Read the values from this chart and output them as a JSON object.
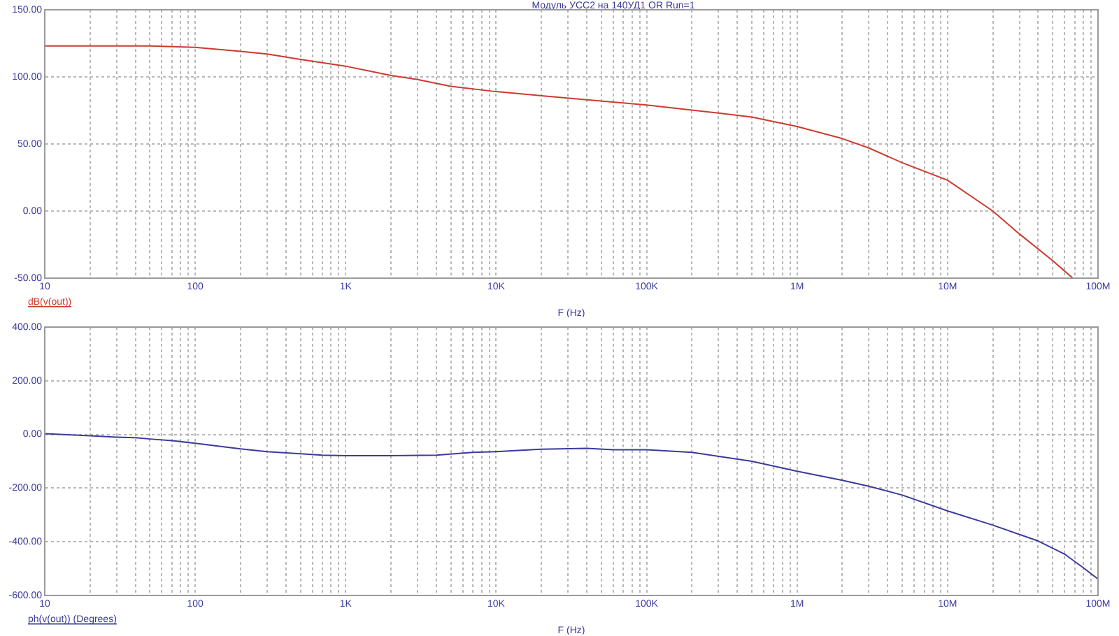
{
  "chart_data": [
    {
      "type": "line",
      "title": "Модуль УСС2 на 140УД1 OR Run=1",
      "xlabel": "F (Hz)",
      "ylabel": "dB(v(out))",
      "log": "x",
      "grid": true,
      "x": [
        10,
        50,
        100,
        200,
        300,
        500,
        1000,
        2000,
        3000,
        5000,
        10000,
        20000,
        40000,
        100000,
        300000,
        500000,
        1000000,
        2000000,
        3000000,
        5000000,
        10000000,
        20000000,
        30000000,
        50000000,
        68000000
      ],
      "series": [
        {
          "color": "#cc3b30",
          "values": [
            123,
            123,
            122,
            119,
            117,
            113,
            108,
            101,
            98,
            93,
            89,
            86,
            83,
            79,
            73,
            70,
            63,
            54,
            47,
            36,
            23,
            0,
            -17,
            -37,
            -50
          ]
        }
      ],
      "xlim": [
        10,
        100000000
      ],
      "ylim": [
        -50,
        150
      ],
      "yticks": [
        {
          "value": -50,
          "label": "-50.00"
        },
        {
          "value": 0,
          "label": "0.00"
        },
        {
          "value": 50,
          "label": "50.00"
        },
        {
          "value": 100,
          "label": "100.00"
        },
        {
          "value": 150,
          "label": "150.00"
        }
      ],
      "xticks": [
        {
          "value": 10,
          "label": "10"
        },
        {
          "value": 20,
          "label": null
        },
        {
          "value": 30,
          "label": null
        },
        {
          "value": 40,
          "label": null
        },
        {
          "value": 50,
          "label": null
        },
        {
          "value": 60,
          "label": null
        },
        {
          "value": 70,
          "label": null
        },
        {
          "value": 80,
          "label": null
        },
        {
          "value": 90,
          "label": null
        },
        {
          "value": 100,
          "label": "100"
        },
        {
          "value": 200,
          "label": null
        },
        {
          "value": 300,
          "label": null
        },
        {
          "value": 400,
          "label": null
        },
        {
          "value": 500,
          "label": null
        },
        {
          "value": 600,
          "label": null
        },
        {
          "value": 700,
          "label": null
        },
        {
          "value": 800,
          "label": null
        },
        {
          "value": 900,
          "label": null
        },
        {
          "value": 1000,
          "label": "1K"
        },
        {
          "value": 2000,
          "label": null
        },
        {
          "value": 3000,
          "label": null
        },
        {
          "value": 4000,
          "label": null
        },
        {
          "value": 5000,
          "label": null
        },
        {
          "value": 6000,
          "label": null
        },
        {
          "value": 7000,
          "label": null
        },
        {
          "value": 8000,
          "label": null
        },
        {
          "value": 9000,
          "label": null
        },
        {
          "value": 10000,
          "label": "10K"
        },
        {
          "value": 20000,
          "label": null
        },
        {
          "value": 30000,
          "label": null
        },
        {
          "value": 40000,
          "label": null
        },
        {
          "value": 50000,
          "label": null
        },
        {
          "value": 60000,
          "label": null
        },
        {
          "value": 70000,
          "label": null
        },
        {
          "value": 80000,
          "label": null
        },
        {
          "value": 90000,
          "label": null
        },
        {
          "value": 100000,
          "label": "100K"
        },
        {
          "value": 200000,
          "label": null
        },
        {
          "value": 300000,
          "label": null
        },
        {
          "value": 400000,
          "label": null
        },
        {
          "value": 500000,
          "label": null
        },
        {
          "value": 600000,
          "label": null
        },
        {
          "value": 700000,
          "label": null
        },
        {
          "value": 800000,
          "label": null
        },
        {
          "value": 900000,
          "label": null
        },
        {
          "value": 1000000,
          "label": "1M"
        },
        {
          "value": 2000000,
          "label": null
        },
        {
          "value": 3000000,
          "label": null
        },
        {
          "value": 4000000,
          "label": null
        },
        {
          "value": 5000000,
          "label": null
        },
        {
          "value": 6000000,
          "label": null
        },
        {
          "value": 7000000,
          "label": null
        },
        {
          "value": 8000000,
          "label": null
        },
        {
          "value": 9000000,
          "label": null
        },
        {
          "value": 10000000,
          "label": "10M"
        },
        {
          "value": 20000000,
          "label": null
        },
        {
          "value": 30000000,
          "label": null
        },
        {
          "value": 40000000,
          "label": null
        },
        {
          "value": 50000000,
          "label": null
        },
        {
          "value": 60000000,
          "label": null
        },
        {
          "value": 70000000,
          "label": null
        },
        {
          "value": 80000000,
          "label": null
        },
        {
          "value": 90000000,
          "label": null
        },
        {
          "value": 100000000,
          "label": "100M"
        }
      ]
    },
    {
      "type": "line",
      "xlabel": "F (Hz)",
      "ylabel": "ph(v(out)) (Degrees)",
      "log": "x",
      "grid": true,
      "x": [
        10,
        20,
        30,
        40,
        50,
        70,
        100,
        200,
        300,
        500,
        700,
        1000,
        2000,
        4000,
        7000,
        10000,
        20000,
        40000,
        60000,
        100000,
        200000,
        500000,
        1000000,
        2000000,
        3000000,
        5000000,
        10000000,
        20000000,
        40000000,
        60000000,
        80000000,
        100000000
      ],
      "series": [
        {
          "color": "#3a3a9e",
          "values": [
            3,
            -5,
            -10,
            -12,
            -17,
            -23,
            -33,
            -54,
            -64,
            -72,
            -77,
            -79,
            -79,
            -77,
            -67,
            -64,
            -55,
            -52,
            -57,
            -57,
            -67,
            -100,
            -137,
            -171,
            -193,
            -226,
            -285,
            -338,
            -397,
            -446,
            -497,
            -539
          ]
        }
      ],
      "xlim": [
        10,
        100000000
      ],
      "ylim": [
        -600,
        400
      ],
      "yticks": [
        {
          "value": -600,
          "label": "-600.00"
        },
        {
          "value": -400,
          "label": "-400.00"
        },
        {
          "value": -200,
          "label": "-200.00"
        },
        {
          "value": 0,
          "label": "0.00"
        },
        {
          "value": 200,
          "label": "200.00"
        },
        {
          "value": 400,
          "label": "400.00"
        }
      ],
      "xticks": [
        {
          "value": 10,
          "label": "10"
        },
        {
          "value": 20,
          "label": null
        },
        {
          "value": 30,
          "label": null
        },
        {
          "value": 40,
          "label": null
        },
        {
          "value": 50,
          "label": null
        },
        {
          "value": 60,
          "label": null
        },
        {
          "value": 70,
          "label": null
        },
        {
          "value": 80,
          "label": null
        },
        {
          "value": 90,
          "label": null
        },
        {
          "value": 100,
          "label": "100"
        },
        {
          "value": 200,
          "label": null
        },
        {
          "value": 300,
          "label": null
        },
        {
          "value": 400,
          "label": null
        },
        {
          "value": 500,
          "label": null
        },
        {
          "value": 600,
          "label": null
        },
        {
          "value": 700,
          "label": null
        },
        {
          "value": 800,
          "label": null
        },
        {
          "value": 900,
          "label": null
        },
        {
          "value": 1000,
          "label": "1K"
        },
        {
          "value": 2000,
          "label": null
        },
        {
          "value": 3000,
          "label": null
        },
        {
          "value": 4000,
          "label": null
        },
        {
          "value": 5000,
          "label": null
        },
        {
          "value": 6000,
          "label": null
        },
        {
          "value": 7000,
          "label": null
        },
        {
          "value": 8000,
          "label": null
        },
        {
          "value": 9000,
          "label": null
        },
        {
          "value": 10000,
          "label": "10K"
        },
        {
          "value": 20000,
          "label": null
        },
        {
          "value": 30000,
          "label": null
        },
        {
          "value": 40000,
          "label": null
        },
        {
          "value": 50000,
          "label": null
        },
        {
          "value": 60000,
          "label": null
        },
        {
          "value": 70000,
          "label": null
        },
        {
          "value": 80000,
          "label": null
        },
        {
          "value": 90000,
          "label": null
        },
        {
          "value": 100000,
          "label": "100K"
        },
        {
          "value": 200000,
          "label": null
        },
        {
          "value": 300000,
          "label": null
        },
        {
          "value": 400000,
          "label": null
        },
        {
          "value": 500000,
          "label": null
        },
        {
          "value": 600000,
          "label": null
        },
        {
          "value": 700000,
          "label": null
        },
        {
          "value": 800000,
          "label": null
        },
        {
          "value": 900000,
          "label": null
        },
        {
          "value": 1000000,
          "label": "1M"
        },
        {
          "value": 2000000,
          "label": null
        },
        {
          "value": 3000000,
          "label": null
        },
        {
          "value": 4000000,
          "label": null
        },
        {
          "value": 5000000,
          "label": null
        },
        {
          "value": 6000000,
          "label": null
        },
        {
          "value": 7000000,
          "label": null
        },
        {
          "value": 8000000,
          "label": null
        },
        {
          "value": 9000000,
          "label": null
        },
        {
          "value": 10000000,
          "label": "10M"
        },
        {
          "value": 20000000,
          "label": null
        },
        {
          "value": 30000000,
          "label": null
        },
        {
          "value": 40000000,
          "label": null
        },
        {
          "value": 50000000,
          "label": null
        },
        {
          "value": 60000000,
          "label": null
        },
        {
          "value": 70000000,
          "label": null
        },
        {
          "value": 80000000,
          "label": null
        },
        {
          "value": 90000000,
          "label": null
        },
        {
          "value": 100000000,
          "label": "100M"
        }
      ]
    }
  ]
}
